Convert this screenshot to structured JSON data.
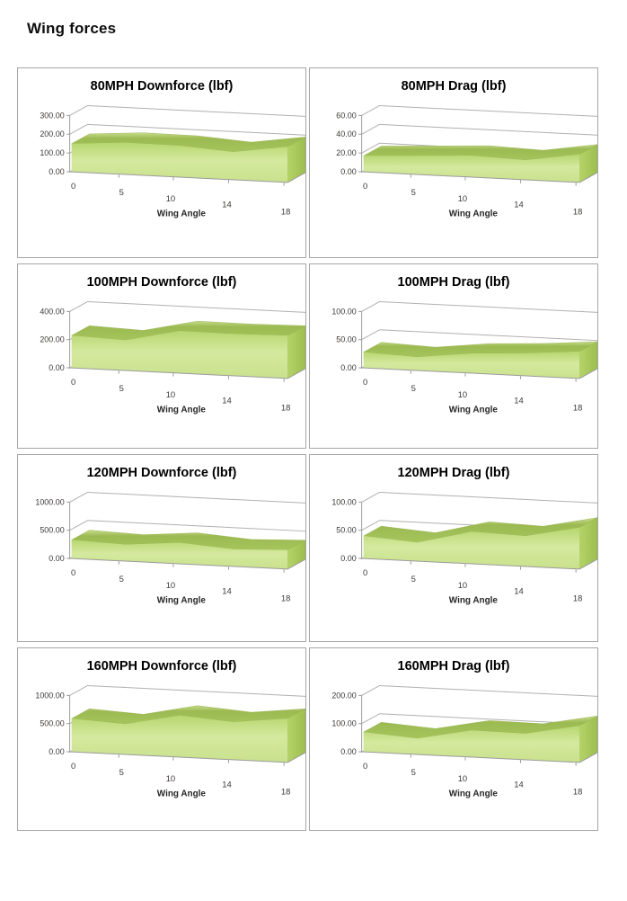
{
  "page": {
    "title": "Wing forces"
  },
  "style": {
    "panel_border": "#a6a6a6",
    "gridline": "#b3b0ae",
    "axis_line": "#9b9b9b",
    "tick_label_color": "#3d3a38",
    "area_face_top": "#b7d66f",
    "area_face_mid": "#d4e99e",
    "area_face_bottom": "#c9e18d",
    "area_ridge_light": "#c6dc8a",
    "area_ridge_dark": "#94b14c",
    "area_side_light": "#b5d468",
    "area_side_dark": "#9cbd4f"
  },
  "chart_data": [
    {
      "id": "80mph-downforce",
      "type": "area",
      "title": "80MPH Downforce (lbf)",
      "xlabel": "Wing Angle",
      "categories": [
        0,
        5,
        10,
        14,
        18
      ],
      "x_tick_labels": [
        "0",
        "5",
        "10",
        "14",
        "18"
      ],
      "values": [
        150,
        170,
        168,
        148,
        190
      ],
      "y_tick_labels": [
        "0.00",
        "100.00",
        "200.00",
        "300.00"
      ],
      "ylim": [
        0,
        300
      ],
      "grid": true,
      "legend": "none"
    },
    {
      "id": "80mph-drag",
      "type": "area",
      "title": "80MPH Drag (lbf)",
      "xlabel": "Wing Angle",
      "categories": [
        0,
        5,
        10,
        14,
        18
      ],
      "x_tick_labels": [
        "0",
        "5",
        "10",
        "14",
        "18"
      ],
      "values": [
        17,
        20,
        23,
        21,
        30
      ],
      "y_tick_labels": [
        "0.00",
        "20.00",
        "40.00",
        "60.00"
      ],
      "ylim": [
        0,
        60
      ],
      "grid": true,
      "legend": "none"
    },
    {
      "id": "100mph-downforce",
      "type": "area",
      "title": "100MPH Downforce (lbf)",
      "xlabel": "Wing Angle",
      "categories": [
        0,
        5,
        10,
        14,
        18
      ],
      "x_tick_labels": [
        "0",
        "5",
        "10",
        "14",
        "18"
      ],
      "values": [
        230,
        215,
        300,
        298,
        305
      ],
      "y_tick_labels": [
        "0.00",
        "200.00",
        "400.00"
      ],
      "ylim": [
        0,
        400
      ],
      "grid": true,
      "legend": "none"
    },
    {
      "id": "100mph-drag",
      "type": "area",
      "title": "100MPH Drag (lbf)",
      "xlabel": "Wing Angle",
      "categories": [
        0,
        5,
        10,
        14,
        18
      ],
      "x_tick_labels": [
        "0",
        "5",
        "10",
        "14",
        "18"
      ],
      "values": [
        28,
        24,
        35,
        40,
        48
      ],
      "y_tick_labels": [
        "0.00",
        "50.00",
        "100.00"
      ],
      "ylim": [
        0,
        100
      ],
      "grid": true,
      "legend": "none"
    },
    {
      "id": "120mph-downforce",
      "type": "area",
      "title": "120MPH Downforce (lbf)",
      "xlabel": "Wing Angle",
      "categories": [
        0,
        5,
        10,
        14,
        18
      ],
      "x_tick_labels": [
        "0",
        "5",
        "10",
        "14",
        "18"
      ],
      "values": [
        330,
        295,
        375,
        305,
        340
      ],
      "y_tick_labels": [
        "0.00",
        "500.00",
        "1000.00"
      ],
      "ylim": [
        0,
        1000
      ],
      "grid": true,
      "legend": "none"
    },
    {
      "id": "120mph-drag",
      "type": "area",
      "title": "120MPH Drag (lbf)",
      "xlabel": "Wing Angle",
      "categories": [
        0,
        5,
        10,
        14,
        18
      ],
      "x_tick_labels": [
        "0",
        "5",
        "10",
        "14",
        "18"
      ],
      "values": [
        40,
        33,
        57,
        54,
        74
      ],
      "y_tick_labels": [
        "0.00",
        "50.00",
        "100.00"
      ],
      "ylim": [
        0,
        100
      ],
      "grid": true,
      "legend": "none"
    },
    {
      "id": "160mph-downforce",
      "type": "area",
      "title": "160MPH Downforce (lbf)",
      "xlabel": "Wing Angle",
      "categories": [
        0,
        5,
        10,
        14,
        18
      ],
      "x_tick_labels": [
        "0",
        "5",
        "10",
        "14",
        "18"
      ],
      "values": [
        590,
        540,
        740,
        670,
        780
      ],
      "y_tick_labels": [
        "0.00",
        "500.00",
        "1000.00"
      ],
      "ylim": [
        0,
        1000
      ],
      "grid": true,
      "legend": "none"
    },
    {
      "id": "160mph-drag",
      "type": "area",
      "title": "160MPH Drag (lbf)",
      "xlabel": "Wing Angle",
      "categories": [
        0,
        5,
        10,
        14,
        18
      ],
      "x_tick_labels": [
        "0",
        "5",
        "10",
        "14",
        "18"
      ],
      "values": [
        70,
        57,
        95,
        93,
        130
      ],
      "y_tick_labels": [
        "0.00",
        "100.00",
        "200.00"
      ],
      "ylim": [
        0,
        200
      ],
      "grid": true,
      "legend": "none"
    }
  ]
}
